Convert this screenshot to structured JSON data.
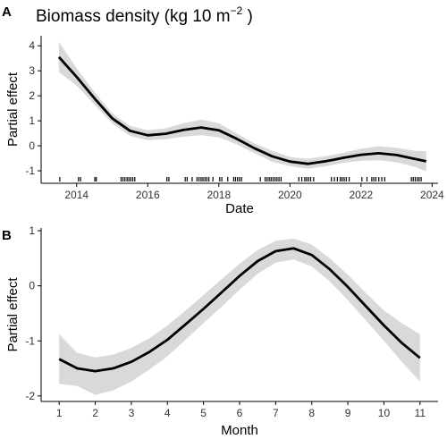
{
  "panels": {
    "a": {
      "letter": "A"
    },
    "b": {
      "letter": "B"
    }
  },
  "title": {
    "prefix": "Biomass density (kg 10 m",
    "superscript": "−2",
    "suffix": " )"
  },
  "colors": {
    "line": "#000000",
    "band": "#d9d9d9",
    "axis": "#000000",
    "rug": "#000000"
  },
  "chart_data": [
    {
      "type": "line",
      "panel": "A",
      "xlabel": "Date",
      "ylabel": "Partial effect",
      "xlim": [
        "2013-01-01",
        "2024-03-01"
      ],
      "ylim": [
        -1.5,
        4.4
      ],
      "xticks": [
        "2014",
        "2016",
        "2018",
        "2020",
        "2022",
        "2024"
      ],
      "yticks": [
        -1,
        0,
        1,
        2,
        3,
        4
      ],
      "grid": false,
      "series": [
        {
          "x": [
            "2013-07-01",
            "2014-01-01",
            "2014-07-01",
            "2015-01-01",
            "2015-07-01",
            "2016-01-01",
            "2016-07-01",
            "2017-01-01",
            "2017-07-01",
            "2018-01-01",
            "2018-07-01",
            "2019-01-01",
            "2019-07-01",
            "2020-01-01",
            "2020-07-01",
            "2021-01-01",
            "2021-07-01",
            "2022-01-01",
            "2022-07-01",
            "2023-01-01",
            "2023-07-01",
            "2023-11-01"
          ],
          "y": [
            3.55,
            2.75,
            1.9,
            1.1,
            0.6,
            0.42,
            0.48,
            0.63,
            0.73,
            0.62,
            0.28,
            -0.1,
            -0.42,
            -0.63,
            -0.72,
            -0.62,
            -0.48,
            -0.36,
            -0.3,
            -0.37,
            -0.52,
            -0.62
          ],
          "upper": [
            4.15,
            3.1,
            2.15,
            1.3,
            0.8,
            0.62,
            0.7,
            0.9,
            1.05,
            0.9,
            0.5,
            0.1,
            -0.2,
            -0.45,
            -0.52,
            -0.42,
            -0.28,
            -0.12,
            -0.02,
            -0.08,
            -0.2,
            -0.22
          ],
          "lower": [
            2.95,
            2.4,
            1.65,
            0.9,
            0.4,
            0.22,
            0.26,
            0.36,
            0.42,
            0.34,
            0.06,
            -0.3,
            -0.64,
            -0.81,
            -0.92,
            -0.82,
            -0.68,
            -0.6,
            -0.58,
            -0.66,
            -0.84,
            -1.02
          ]
        }
      ],
      "rug": [
        "2013-07-10",
        "2014-01-20",
        "2014-02-10",
        "2014-07-05",
        "2014-07-20",
        "2015-04-01",
        "2015-04-20",
        "2015-05-10",
        "2015-06-01",
        "2015-06-20",
        "2015-07-10",
        "2015-07-30",
        "2015-08-20",
        "2016-07-15",
        "2016-08-05",
        "2017-01-20",
        "2017-02-10",
        "2017-04-01",
        "2017-05-20",
        "2017-06-10",
        "2017-07-01",
        "2017-07-20",
        "2017-08-10",
        "2017-08-30",
        "2017-09-20",
        "2017-11-01",
        "2018-01-10",
        "2018-02-01",
        "2018-04-01",
        "2018-06-01",
        "2018-06-20",
        "2018-07-10",
        "2018-07-30",
        "2018-08-20",
        "2019-03-01",
        "2019-04-20",
        "2019-05-10",
        "2019-06-01",
        "2019-06-20",
        "2019-07-10",
        "2019-07-30",
        "2019-08-20",
        "2019-09-10",
        "2019-10-01",
        "2020-04-01",
        "2020-05-01",
        "2020-06-01",
        "2020-06-20",
        "2020-07-10",
        "2020-08-01",
        "2020-09-01",
        "2021-03-01",
        "2021-04-01",
        "2021-05-01",
        "2021-06-01",
        "2021-06-20",
        "2021-07-10",
        "2021-08-01",
        "2021-09-01",
        "2022-01-10",
        "2022-03-01",
        "2022-04-20",
        "2022-05-10",
        "2022-06-01",
        "2022-07-01",
        "2022-08-01",
        "2022-09-01",
        "2023-06-01",
        "2023-06-20",
        "2023-07-10",
        "2023-08-01",
        "2023-08-20",
        "2023-09-10"
      ]
    },
    {
      "type": "line",
      "panel": "B",
      "xlabel": "Month",
      "ylabel": "Partial effect",
      "xlim": [
        0.5,
        11.5
      ],
      "ylim": [
        -2.1,
        1.05
      ],
      "xticks": [
        1,
        2,
        3,
        4,
        5,
        6,
        7,
        8,
        9,
        10,
        11
      ],
      "yticks": [
        -2,
        -1,
        0,
        1
      ],
      "grid": false,
      "series": [
        {
          "x": [
            1,
            1.5,
            2,
            2.5,
            3,
            3.5,
            4,
            4.5,
            5,
            5.5,
            6,
            6.5,
            7,
            7.5,
            8,
            8.5,
            9,
            9.5,
            10,
            10.5,
            11
          ],
          "y": [
            -1.33,
            -1.5,
            -1.55,
            -1.5,
            -1.38,
            -1.2,
            -0.98,
            -0.7,
            -0.42,
            -0.12,
            0.18,
            0.45,
            0.63,
            0.68,
            0.56,
            0.3,
            -0.02,
            -0.37,
            -0.72,
            -1.04,
            -1.31
          ],
          "upper": [
            -0.88,
            -1.22,
            -1.3,
            -1.25,
            -1.13,
            -0.95,
            -0.72,
            -0.45,
            -0.17,
            0.12,
            0.4,
            0.65,
            0.82,
            0.86,
            0.75,
            0.5,
            0.2,
            -0.13,
            -0.45,
            -0.68,
            -0.88
          ],
          "lower": [
            -1.78,
            -1.82,
            -1.98,
            -1.9,
            -1.74,
            -1.52,
            -1.28,
            -0.98,
            -0.68,
            -0.38,
            -0.07,
            0.22,
            0.42,
            0.48,
            0.35,
            0.08,
            -0.26,
            -0.63,
            -1.0,
            -1.38,
            -1.74
          ]
        }
      ]
    }
  ]
}
